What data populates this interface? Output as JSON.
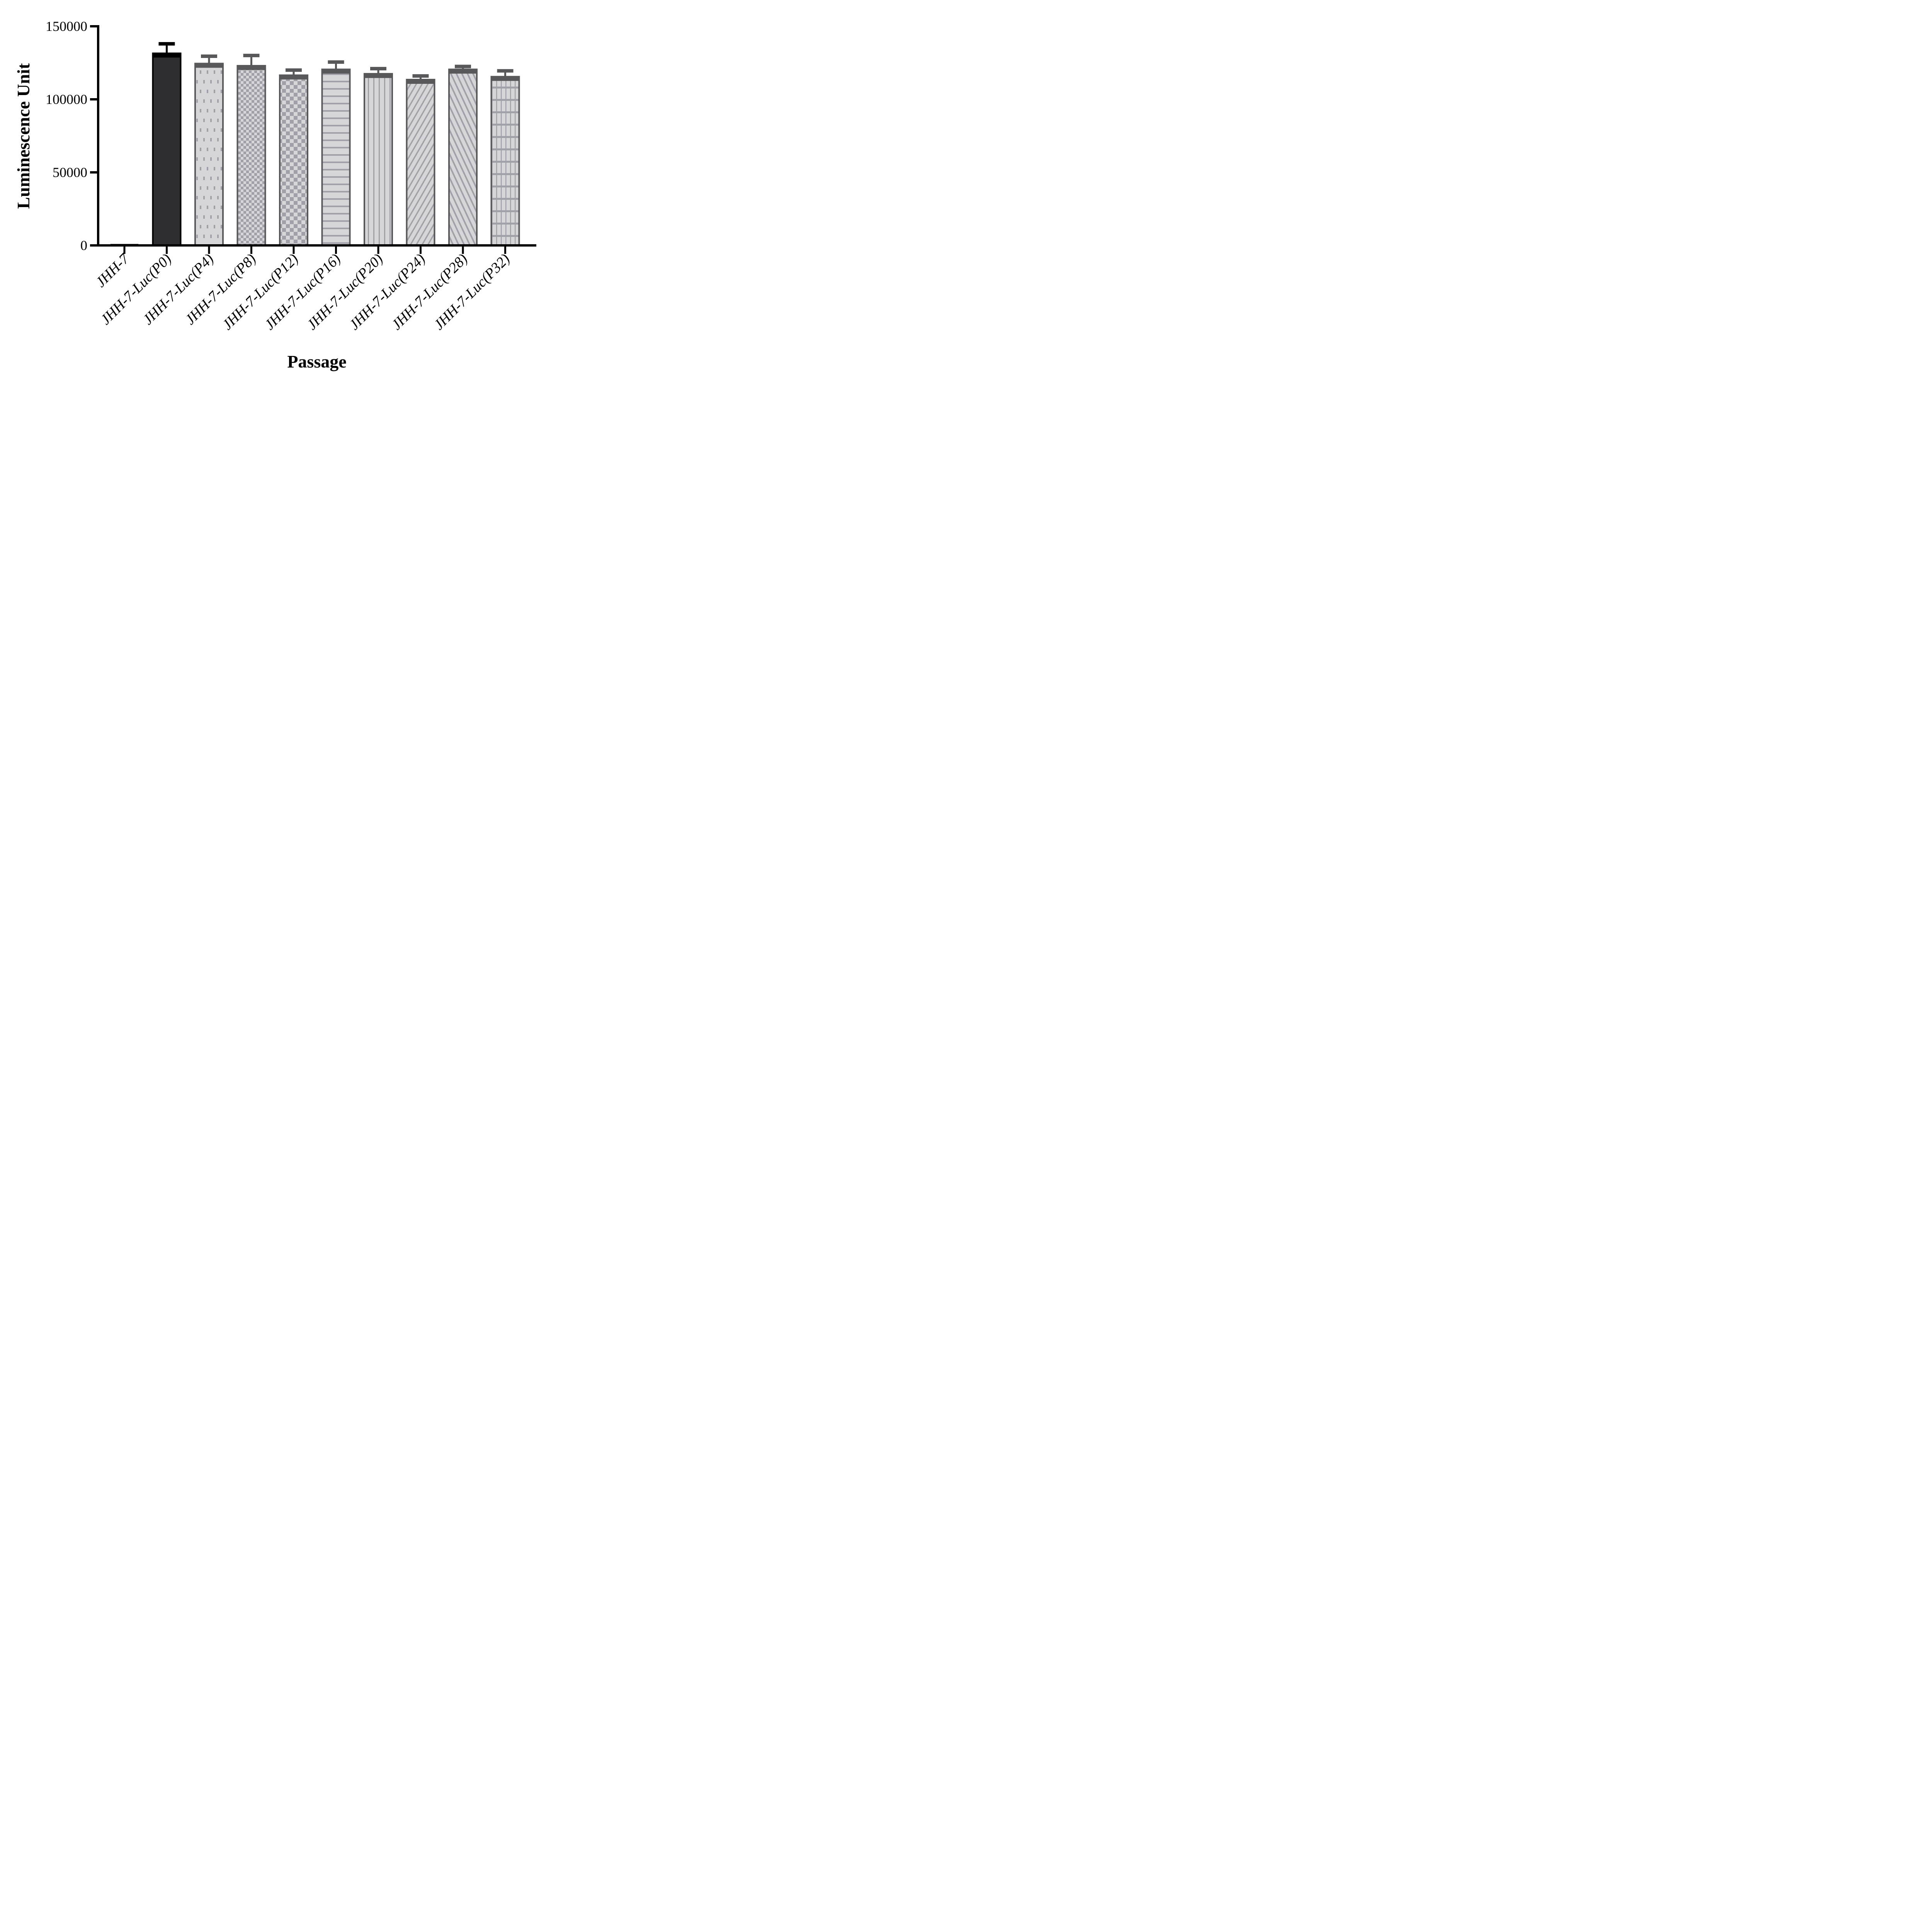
{
  "chart_data": {
    "type": "bar",
    "title": "",
    "xlabel": "Passage",
    "ylabel": "Luminescence Unit",
    "ylim": [
      0,
      150000
    ],
    "yticks": [
      {
        "value": 0,
        "label": "0"
      },
      {
        "value": 50000,
        "label": "50000"
      },
      {
        "value": 100000,
        "label": "100000"
      },
      {
        "value": 150000,
        "label": "150000"
      }
    ],
    "grid": false,
    "legend": "none",
    "categories": [
      "JHH-7",
      "JHH-7-Luc(P0)",
      "JHH-7-Luc(P4)",
      "JHH-7-Luc(P8)",
      "JHH-7-Luc(P12)",
      "JHH-7-Luc(P16)",
      "JHH-7-Luc(P20)",
      "JHH-7-Luc(P24)",
      "JHH-7-Luc(P28)",
      "JHH-7-Luc(P32)"
    ],
    "series": [
      {
        "name": "Luminescence Unit",
        "values": [
          1000,
          131500,
          124500,
          123000,
          116500,
          120500,
          117500,
          113500,
          120500,
          115500
        ],
        "errors_plus": [
          0,
          6500,
          5000,
          7000,
          3500,
          5000,
          3500,
          2500,
          2000,
          4000
        ]
      }
    ],
    "bar_patterns": [
      "black-sliver",
      "solid-dark",
      "dots",
      "check-fine",
      "check-big",
      "hlines",
      "vlines",
      "diag-up",
      "diag-down",
      "grid"
    ],
    "colors": {
      "axis": "#000000",
      "black_bar_fill": "#2e2e30",
      "black_bar_border": "#000000",
      "bar_border": "#58585a",
      "fill_light": "#d6d6d8",
      "pattern_mark": "#a0a0a8",
      "text": "#000000",
      "background": "#ffffff"
    }
  }
}
